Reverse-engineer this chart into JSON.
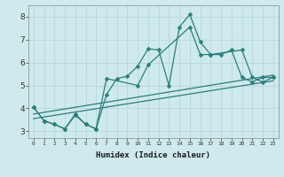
{
  "xlabel": "Humidex (Indice chaleur)",
  "bg_color": "#ceeaed",
  "grid_color": "#b8d8dc",
  "line_color": "#2d7d7a",
  "markersize": 2.5,
  "linewidth": 0.9,
  "xlim": [
    -0.5,
    23.5
  ],
  "ylim": [
    2.7,
    8.5
  ],
  "xticks": [
    0,
    1,
    2,
    3,
    4,
    5,
    6,
    7,
    8,
    9,
    10,
    11,
    12,
    13,
    14,
    15,
    16,
    17,
    18,
    19,
    20,
    21,
    22,
    23
  ],
  "yticks": [
    3,
    4,
    5,
    6,
    7,
    8
  ],
  "series": [
    {
      "x": [
        0,
        1,
        2,
        3,
        4,
        5,
        6,
        7,
        8,
        9,
        10,
        11,
        12,
        13,
        14,
        15,
        16,
        17,
        18,
        19,
        20,
        21,
        22,
        23
      ],
      "y": [
        4.05,
        3.45,
        3.3,
        3.1,
        3.7,
        3.3,
        3.1,
        4.6,
        5.3,
        5.4,
        5.85,
        6.6,
        6.55,
        5.0,
        7.55,
        8.1,
        6.9,
        6.35,
        6.35,
        6.55,
        5.35,
        5.15,
        5.35,
        5.35
      ],
      "marker": true
    },
    {
      "x": [
        0,
        1,
        2,
        3,
        4,
        5,
        6,
        7,
        10,
        11,
        15,
        16,
        17,
        20,
        21,
        22,
        23
      ],
      "y": [
        4.05,
        3.45,
        3.3,
        3.1,
        3.75,
        3.3,
        3.1,
        5.3,
        5.0,
        5.9,
        7.55,
        6.35,
        6.35,
        6.55,
        5.35,
        5.15,
        5.35
      ],
      "marker": true
    },
    {
      "x": [
        0,
        23
      ],
      "y": [
        3.55,
        5.2
      ],
      "marker": false
    },
    {
      "x": [
        0,
        23
      ],
      "y": [
        3.75,
        5.45
      ],
      "marker": false
    }
  ]
}
